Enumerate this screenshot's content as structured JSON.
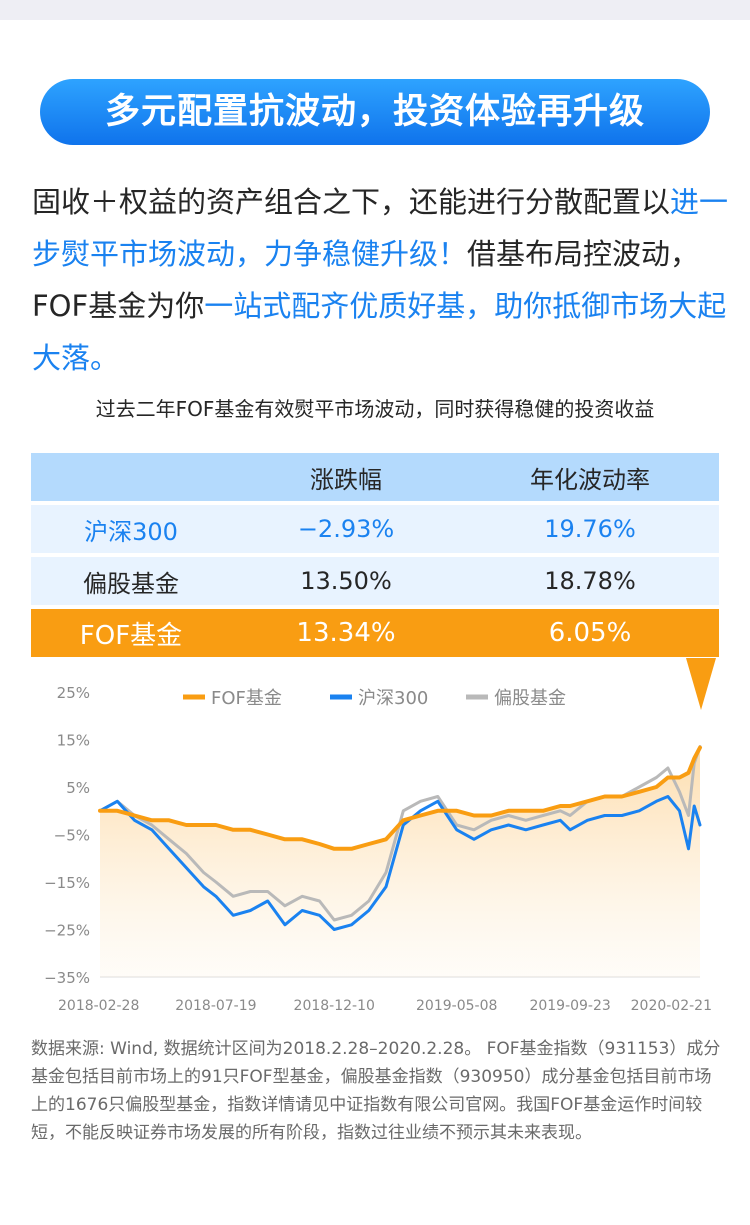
{
  "header": {
    "banner": "多元配置抗波动，投资体验再升级"
  },
  "intro": [
    {
      "text": "固收＋权益的资产组合之下，还能进行分散配置以",
      "hl": false
    },
    {
      "text": "进一步熨平市场波动，力争稳健升级！",
      "hl": true
    },
    {
      "text": "借基布局控波动，FOF基金为你",
      "hl": false
    },
    {
      "text": "一站式配齐优质好基，助你抵御市场大起大落。",
      "hl": true
    }
  ],
  "caption": "过去二年FOF基金有效熨平市场波动，同时获得稳健的投资收益",
  "table": {
    "headers": [
      "",
      "涨跌幅",
      "年化波动率"
    ],
    "rows": [
      [
        "沪深300",
        "−2.93%",
        "19.76%"
      ],
      [
        "偏股基金",
        "13.50%",
        "18.78%"
      ],
      [
        "FOF基金",
        "13.34%",
        "6.05%"
      ]
    ]
  },
  "chart_data": {
    "type": "line",
    "title": "",
    "xlabel": "",
    "ylabel": "",
    "ylim": [
      -35,
      25
    ],
    "yticks": [
      "25%",
      "15%",
      "5%",
      "−5%",
      "−15%",
      "−25%",
      "−35%"
    ],
    "xticks": [
      "2018-02-28",
      "2018-07-19",
      "2018-12-10",
      "2019-05-08",
      "2019-09-23",
      "2020-02-21"
    ],
    "x": [
      "2018-02-28",
      "2018-03-21",
      "2018-04-11",
      "2018-05-02",
      "2018-05-23",
      "2018-06-13",
      "2018-07-04",
      "2018-07-19",
      "2018-08-09",
      "2018-08-30",
      "2018-09-20",
      "2018-10-11",
      "2018-11-01",
      "2018-11-22",
      "2018-12-10",
      "2018-12-31",
      "2019-01-21",
      "2019-02-11",
      "2019-03-04",
      "2019-03-25",
      "2019-04-15",
      "2019-05-08",
      "2019-05-29",
      "2019-06-19",
      "2019-07-10",
      "2019-07-31",
      "2019-08-21",
      "2019-09-11",
      "2019-09-23",
      "2019-10-14",
      "2019-11-04",
      "2019-11-25",
      "2019-12-16",
      "2020-01-06",
      "2020-01-20",
      "2020-02-03",
      "2020-02-14",
      "2020-02-21",
      "2020-02-28"
    ],
    "series": [
      {
        "name": "FOF基金",
        "color": "#f99d12",
        "values": [
          0,
          0,
          -1,
          -2,
          -2,
          -3,
          -3,
          -3,
          -4,
          -4,
          -5,
          -6,
          -6,
          -7,
          -8,
          -8,
          -7,
          -6,
          -2,
          -1,
          0,
          0,
          -1,
          -1,
          0,
          0,
          0,
          1,
          1,
          2,
          3,
          3,
          4,
          5,
          7,
          7,
          8,
          11,
          13.3
        ]
      },
      {
        "name": "沪深300",
        "color": "#1a82f0",
        "values": [
          0,
          2,
          -2,
          -4,
          -8,
          -12,
          -16,
          -18,
          -22,
          -21,
          -19,
          -24,
          -21,
          -22,
          -25,
          -24,
          -21,
          -16,
          -3,
          0,
          2,
          -4,
          -6,
          -4,
          -3,
          -4,
          -3,
          -2,
          -4,
          -2,
          -1,
          -1,
          0,
          2,
          3,
          0,
          -8,
          1,
          -3
        ]
      },
      {
        "name": "偏股基金",
        "color": "#b9b9b9",
        "values": [
          0,
          2,
          -1,
          -3,
          -6,
          -9,
          -13,
          -15,
          -18,
          -17,
          -17,
          -20,
          -18,
          -19,
          -23,
          -22,
          -19,
          -13,
          0,
          2,
          3,
          -3,
          -4,
          -2,
          -1,
          -2,
          -1,
          0,
          -1,
          2,
          3,
          3,
          5,
          7,
          9,
          4,
          -1,
          10,
          13.5
        ]
      }
    ]
  }
}
